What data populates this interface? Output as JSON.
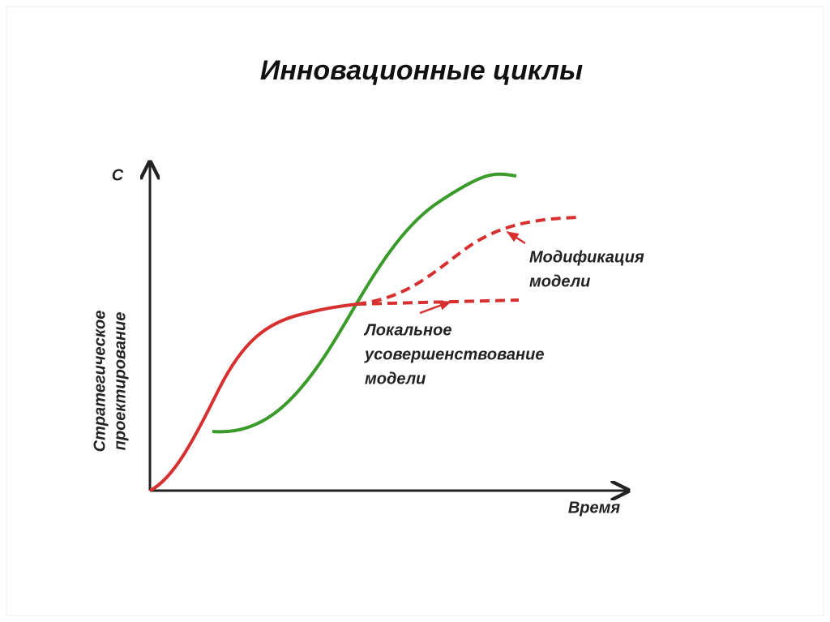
{
  "title": "Инновационные циклы",
  "axes": {
    "y_label": "С",
    "y_title": [
      "Стратегическое",
      "проектирование"
    ],
    "x_label": "Время"
  },
  "annotations": [
    {
      "lines": [
        "Модификация",
        "модели"
      ]
    },
    {
      "lines": [
        "Локальное",
        "усовершенствование",
        "модели"
      ]
    }
  ]
}
